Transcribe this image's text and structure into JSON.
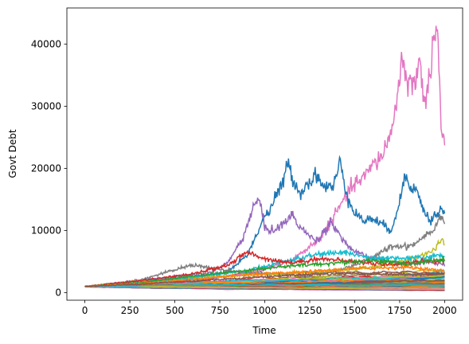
{
  "chart_data": {
    "type": "line",
    "title": "",
    "xlabel": "Time",
    "ylabel": "Govt Debt",
    "xlim": [
      -100,
      2100
    ],
    "ylim": [
      -1200,
      45800
    ],
    "xticks": [
      0,
      250,
      500,
      750,
      1000,
      1250,
      1500,
      1750,
      2000
    ],
    "yticks": [
      0,
      10000,
      20000,
      30000,
      40000
    ],
    "grid": false,
    "legend": "none",
    "x_range": [
      0,
      2000
    ],
    "start_value": 1000,
    "highlighted_series": [
      {
        "color": "#e377c2",
        "points": [
          [
            0,
            1000
          ],
          [
            200,
            1500
          ],
          [
            400,
            1700
          ],
          [
            600,
            2100
          ],
          [
            800,
            2600
          ],
          [
            1000,
            3800
          ],
          [
            1150,
            5200
          ],
          [
            1300,
            8500
          ],
          [
            1380,
            12000
          ],
          [
            1450,
            15500
          ],
          [
            1500,
            17500
          ],
          [
            1550,
            18500
          ],
          [
            1600,
            20500
          ],
          [
            1650,
            22000
          ],
          [
            1700,
            25500
          ],
          [
            1730,
            30000
          ],
          [
            1760,
            37500
          ],
          [
            1790,
            34500
          ],
          [
            1830,
            33000
          ],
          [
            1860,
            38500
          ],
          [
            1880,
            30500
          ],
          [
            1910,
            33500
          ],
          [
            1940,
            41500
          ],
          [
            1960,
            42500
          ],
          [
            1980,
            27000
          ],
          [
            2000,
            23500
          ]
        ]
      },
      {
        "color": "#1f77b4",
        "points": [
          [
            0,
            1000
          ],
          [
            250,
            1600
          ],
          [
            500,
            2300
          ],
          [
            700,
            2800
          ],
          [
            800,
            3500
          ],
          [
            900,
            6000
          ],
          [
            950,
            9000
          ],
          [
            1000,
            12500
          ],
          [
            1030,
            13000
          ],
          [
            1060,
            15500
          ],
          [
            1100,
            17500
          ],
          [
            1130,
            21000
          ],
          [
            1160,
            18000
          ],
          [
            1200,
            16000
          ],
          [
            1250,
            18000
          ],
          [
            1290,
            19000
          ],
          [
            1330,
            17000
          ],
          [
            1380,
            17000
          ],
          [
            1420,
            21000
          ],
          [
            1460,
            15500
          ],
          [
            1500,
            13000
          ],
          [
            1550,
            11500
          ],
          [
            1600,
            12000
          ],
          [
            1650,
            11000
          ],
          [
            1700,
            10000
          ],
          [
            1750,
            14500
          ],
          [
            1780,
            19000
          ],
          [
            1810,
            17500
          ],
          [
            1850,
            16000
          ],
          [
            1880,
            13500
          ],
          [
            1920,
            11500
          ],
          [
            1950,
            12500
          ],
          [
            1980,
            13500
          ],
          [
            2000,
            12500
          ]
        ]
      },
      {
        "color": "#9467bd",
        "points": [
          [
            0,
            1000
          ],
          [
            250,
            1800
          ],
          [
            500,
            2600
          ],
          [
            700,
            3200
          ],
          [
            800,
            5000
          ],
          [
            880,
            9000
          ],
          [
            940,
            14000
          ],
          [
            970,
            15000
          ],
          [
            1000,
            10500
          ],
          [
            1050,
            10000
          ],
          [
            1100,
            11000
          ],
          [
            1150,
            12500
          ],
          [
            1200,
            10500
          ],
          [
            1250,
            9000
          ],
          [
            1300,
            8500
          ],
          [
            1330,
            10000
          ],
          [
            1370,
            11500
          ],
          [
            1400,
            10000
          ],
          [
            1450,
            8000
          ],
          [
            1500,
            6500
          ],
          [
            1600,
            5500
          ],
          [
            1700,
            5000
          ],
          [
            1800,
            4500
          ],
          [
            1900,
            5000
          ],
          [
            2000,
            4500
          ]
        ]
      },
      {
        "color": "#7f7f7f",
        "points": [
          [
            0,
            1000
          ],
          [
            300,
            2000
          ],
          [
            600,
            4500
          ],
          [
            800,
            3500
          ],
          [
            1000,
            3000
          ],
          [
            1200,
            2800
          ],
          [
            1400,
            3500
          ],
          [
            1600,
            5500
          ],
          [
            1700,
            7500
          ],
          [
            1800,
            7500
          ],
          [
            1850,
            8200
          ],
          [
            1900,
            9500
          ],
          [
            1950,
            10500
          ],
          [
            1980,
            13000
          ],
          [
            2000,
            11000
          ]
        ]
      },
      {
        "color": "#bcbd22",
        "points": [
          [
            0,
            1000
          ],
          [
            300,
            1800
          ],
          [
            600,
            2400
          ],
          [
            900,
            2800
          ],
          [
            1200,
            3200
          ],
          [
            1500,
            3800
          ],
          [
            1700,
            4500
          ],
          [
            1850,
            5800
          ],
          [
            1920,
            6500
          ],
          [
            1960,
            7500
          ],
          [
            1985,
            8500
          ],
          [
            2000,
            7800
          ]
        ]
      },
      {
        "color": "#17becf",
        "points": [
          [
            0,
            1000
          ],
          [
            300,
            1700
          ],
          [
            600,
            2500
          ],
          [
            900,
            3500
          ],
          [
            1100,
            5000
          ],
          [
            1300,
            6200
          ],
          [
            1450,
            6500
          ],
          [
            1600,
            5500
          ],
          [
            1800,
            5500
          ],
          [
            2000,
            6000
          ]
        ]
      },
      {
        "color": "#d62728",
        "points": [
          [
            0,
            1000
          ],
          [
            300,
            1900
          ],
          [
            600,
            3000
          ],
          [
            800,
            4500
          ],
          [
            900,
            6500
          ],
          [
            1000,
            5500
          ],
          [
            1150,
            4800
          ],
          [
            1300,
            5500
          ],
          [
            1500,
            5000
          ],
          [
            1700,
            4500
          ],
          [
            1900,
            5200
          ],
          [
            2000,
            5000
          ]
        ]
      },
      {
        "color": "#2ca02c",
        "points": [
          [
            0,
            1000
          ],
          [
            300,
            1600
          ],
          [
            600,
            2700
          ],
          [
            900,
            3600
          ],
          [
            1100,
            4200
          ],
          [
            1400,
            4800
          ],
          [
            1600,
            5200
          ],
          [
            1800,
            4600
          ],
          [
            2000,
            5400
          ]
        ]
      },
      {
        "color": "#ff7f0e",
        "points": [
          [
            0,
            1000
          ],
          [
            300,
            1500
          ],
          [
            600,
            2100
          ],
          [
            900,
            2900
          ],
          [
            1200,
            3300
          ],
          [
            1500,
            3900
          ],
          [
            1800,
            4100
          ],
          [
            2000,
            3500
          ]
        ]
      },
      {
        "color": "#8c564b",
        "points": [
          [
            0,
            1000
          ],
          [
            300,
            1400
          ],
          [
            600,
            1900
          ],
          [
            900,
            2400
          ],
          [
            1200,
            2900
          ],
          [
            1500,
            3100
          ],
          [
            1800,
            2900
          ],
          [
            2000,
            3100
          ]
        ]
      }
    ],
    "background_series": {
      "count": 120,
      "colors": [
        "#1f77b4",
        "#ff7f0e",
        "#2ca02c",
        "#d62728",
        "#9467bd",
        "#8c564b",
        "#e377c2",
        "#7f7f7f",
        "#bcbd22",
        "#17becf"
      ],
      "max_final_value": 6500
    }
  }
}
